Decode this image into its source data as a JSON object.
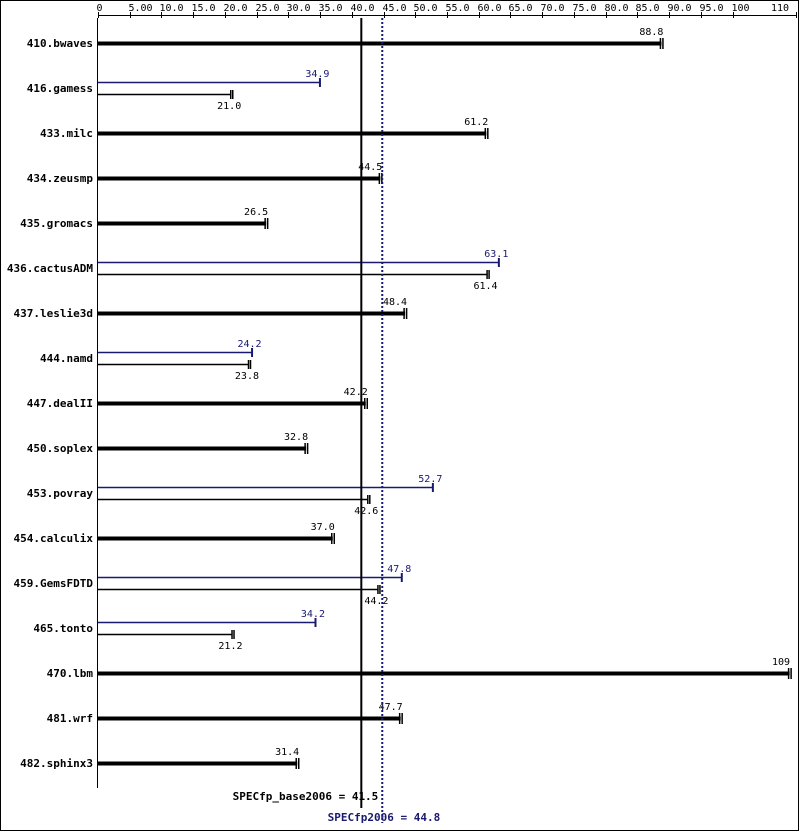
{
  "chart_data": {
    "type": "bar",
    "orientation": "horizontal",
    "x_ticks": [
      "0",
      "5.00",
      "10.0",
      "15.0",
      "20.0",
      "25.0",
      "30.0",
      "35.0",
      "40.0",
      "45.0",
      "50.0",
      "55.0",
      "60.0",
      "65.0",
      "70.0",
      "75.0",
      "80.0",
      "85.0",
      "90.0",
      "95.0",
      "100",
      "110"
    ],
    "x_tick_values": [
      0,
      5,
      10,
      15,
      20,
      25,
      30,
      35,
      40,
      45,
      50,
      55,
      60,
      65,
      70,
      75,
      80,
      85,
      90,
      95,
      100,
      110
    ],
    "xlim": [
      0,
      110
    ],
    "categories": [
      "410.bwaves",
      "416.gamess",
      "433.milc",
      "434.zeusmp",
      "435.gromacs",
      "436.cactusADM",
      "437.leslie3d",
      "444.namd",
      "447.dealII",
      "450.soplex",
      "453.povray",
      "454.calculix",
      "459.GemsFDTD",
      "465.tonto",
      "470.lbm",
      "481.wrf",
      "482.sphinx3"
    ],
    "series": [
      {
        "key": "base",
        "color": "#000000",
        "values": [
          88.8,
          21.0,
          61.2,
          44.5,
          26.5,
          61.4,
          48.4,
          23.8,
          42.2,
          32.8,
          42.6,
          37.0,
          44.2,
          21.2,
          109,
          47.7,
          31.4
        ],
        "labels": [
          "88.8",
          "21.0",
          "61.2",
          "44.5",
          "26.5",
          "61.4",
          "48.4",
          "23.8",
          "42.2",
          "32.8",
          "42.6",
          "37.0",
          "44.2",
          "21.2",
          "109",
          "47.7",
          "31.4"
        ]
      },
      {
        "key": "peak",
        "color": "#191970",
        "values": [
          null,
          34.9,
          null,
          null,
          null,
          63.1,
          null,
          24.2,
          null,
          null,
          52.7,
          null,
          47.8,
          34.2,
          null,
          null,
          null
        ],
        "labels": [
          null,
          "34.9",
          null,
          null,
          null,
          "63.1",
          null,
          "24.2",
          null,
          null,
          "52.7",
          null,
          "47.8",
          "34.2",
          null,
          null,
          null
        ]
      }
    ],
    "reference_lines": [
      {
        "label": "SPECfp_base2006 = 41.5",
        "value": 41.5,
        "color": "#000000",
        "style": "solid"
      },
      {
        "label": "SPECfp2006 = 44.8",
        "value": 44.8,
        "color": "#191970",
        "style": "dotted"
      }
    ]
  }
}
